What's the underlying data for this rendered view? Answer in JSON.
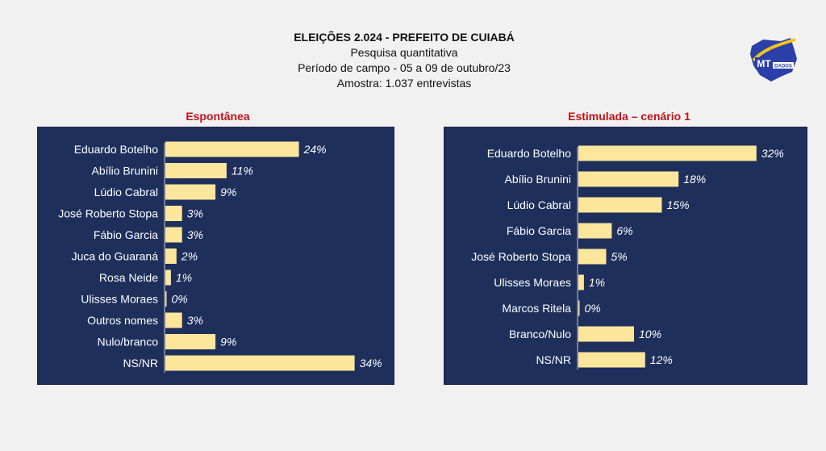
{
  "header": {
    "title": "ELEIÇÕES 2.024  -  PREFEITO DE CUIABÁ",
    "line2": "Pesquisa quantitativa",
    "line3": "Período de campo - 05 a 09 de outubro/23",
    "line4": "Amostra: 1.037 entrevistas"
  },
  "logo": {
    "text": "MT",
    "subtext": "DADOS"
  },
  "colors": {
    "panel": "#1f2f5c",
    "bar": "#fce69c",
    "title": "#c0131b",
    "text": "#ffffff"
  },
  "chart_data": [
    {
      "type": "bar",
      "orientation": "horizontal",
      "title": "Espontânea",
      "categories": [
        "Eduardo Botelho",
        "Abílio Brunini",
        "Lúdio Cabral",
        "José Roberto Stopa",
        "Fábio Garcia",
        "Juca do Guaraná",
        "Rosa Neide",
        "Ulisses Moraes",
        "Outros nomes",
        "Nulo/branco",
        "NS/NR"
      ],
      "values": [
        24,
        11,
        9,
        3,
        3,
        2,
        1,
        0,
        3,
        9,
        34
      ],
      "data_labels": [
        "24%",
        "11%",
        "9%",
        "3%",
        "3%",
        "2%",
        "1%",
        "0%",
        "3%",
        "9%",
        "34%"
      ],
      "unit": "%"
    },
    {
      "type": "bar",
      "orientation": "horizontal",
      "title": "Estimulada – cenário 1",
      "categories": [
        "Eduardo Botelho",
        "Abílio Brunini",
        "Lúdio Cabral",
        "Fábio Garcia",
        "José Roberto Stopa",
        "Ulisses Moraes",
        "Marcos Ritela",
        "Branco/Nulo",
        "NS/NR"
      ],
      "values": [
        32,
        18,
        15,
        6,
        5,
        1,
        0,
        10,
        12
      ],
      "data_labels": [
        "32%",
        "18%",
        "15%",
        "6%",
        "5%",
        "1%",
        "0%",
        "10%",
        "12%"
      ],
      "unit": "%"
    }
  ]
}
